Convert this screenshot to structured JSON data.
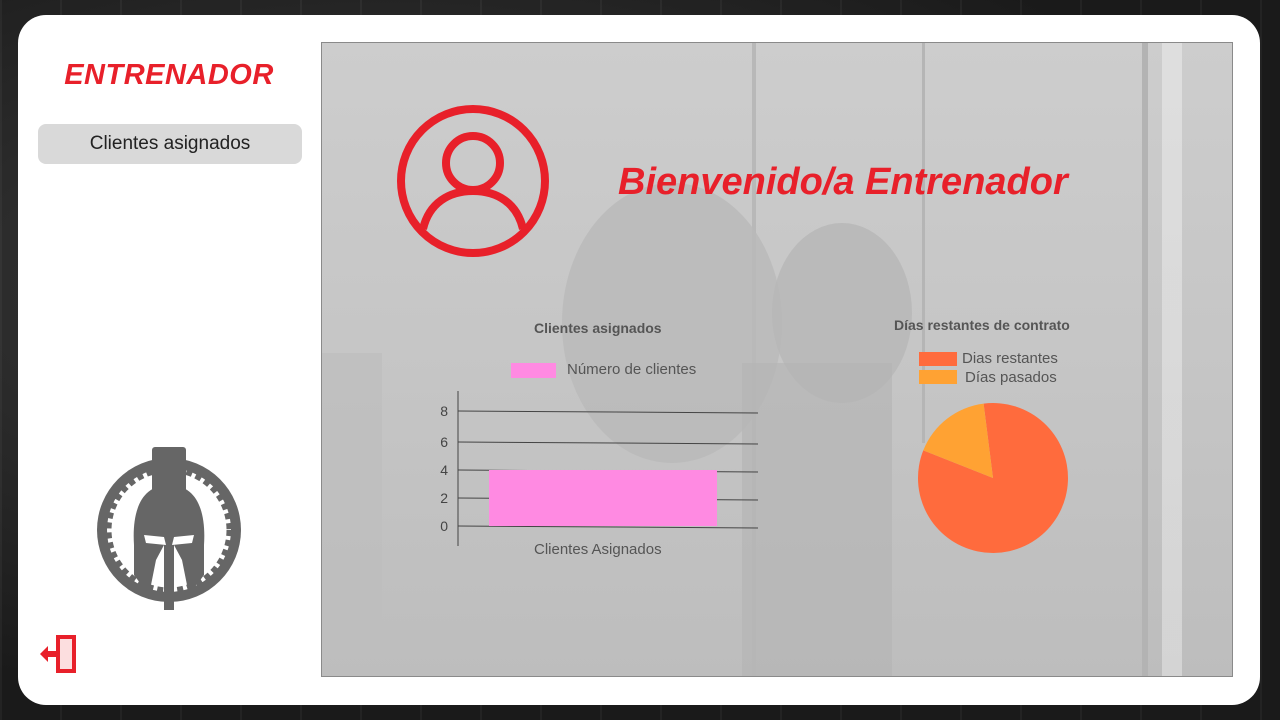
{
  "sidebar": {
    "brand": "ENTRENADOR",
    "nav_items": [
      {
        "label": "Clientes asignados"
      }
    ]
  },
  "main": {
    "welcome": "Bienvenido/a Entrenador"
  },
  "colors": {
    "brand_red": "#e8202a",
    "bar_pink": "#ff8ae2",
    "pie_remaining": "#ff6b3d",
    "pie_past": "#ffa233",
    "sidebar_button_bg": "#d9d9d9"
  },
  "icons": {
    "avatar": "user-circle-icon",
    "logout": "logout-door-icon",
    "logo": "spartan-helmet-logo"
  },
  "chart_data": [
    {
      "type": "bar",
      "title": "Clientes asignados",
      "categories": [
        "Clientes Asignados"
      ],
      "series": [
        {
          "name": "Número de clientes",
          "values": [
            4
          ]
        }
      ],
      "yticks": [
        "8",
        "6",
        "4",
        "2",
        "0"
      ],
      "grid": true,
      "legend": "top"
    },
    {
      "type": "pie",
      "title": "Días restantes de contrato",
      "labels": [
        "Dias restantes",
        "Días pasados"
      ],
      "values": [
        83,
        17
      ],
      "legend": "top"
    }
  ]
}
